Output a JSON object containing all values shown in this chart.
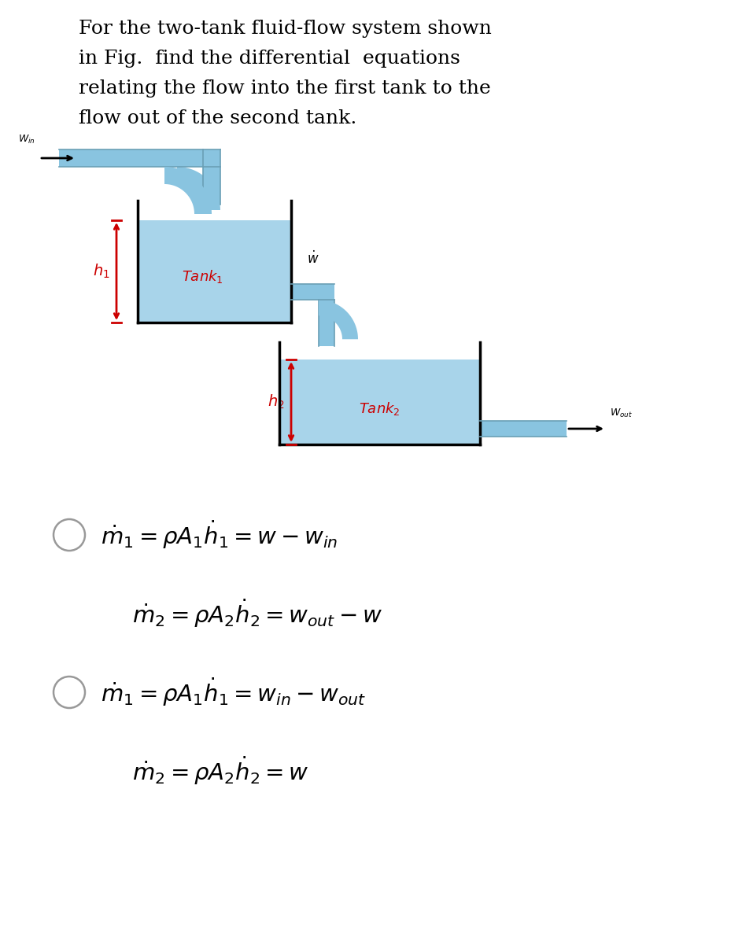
{
  "bg_color": "#ffffff",
  "text_color": "#000000",
  "red_color": "#cc0000",
  "blue_fill": "#a8d4ea",
  "blue_pipe": "#89c4e0",
  "pipe_edge": "#6a9fb5",
  "fig_width": 9.43,
  "fig_height": 12.0,
  "title_lines": [
    "For the two-tank fluid-flow system shown",
    "in Fig.  find the differential  equations",
    "relating the flow into the first tank to the",
    "flow out of the second tank."
  ],
  "eq1a": "$\\dot{m}_1 = \\rho A_1 \\dot{h}_1 = w - w_{in}$",
  "eq1b": "$\\dot{m}_2 = \\rho A_2 \\dot{h}_2 = w_{out} - w$",
  "eq2a": "$\\dot{m}_1 = \\rho A_1 \\dot{h}_1 = w_{in} - w_{out}$",
  "eq2b": "$\\dot{m}_2 = \\rho A_2 \\dot{h}_2 = w$"
}
